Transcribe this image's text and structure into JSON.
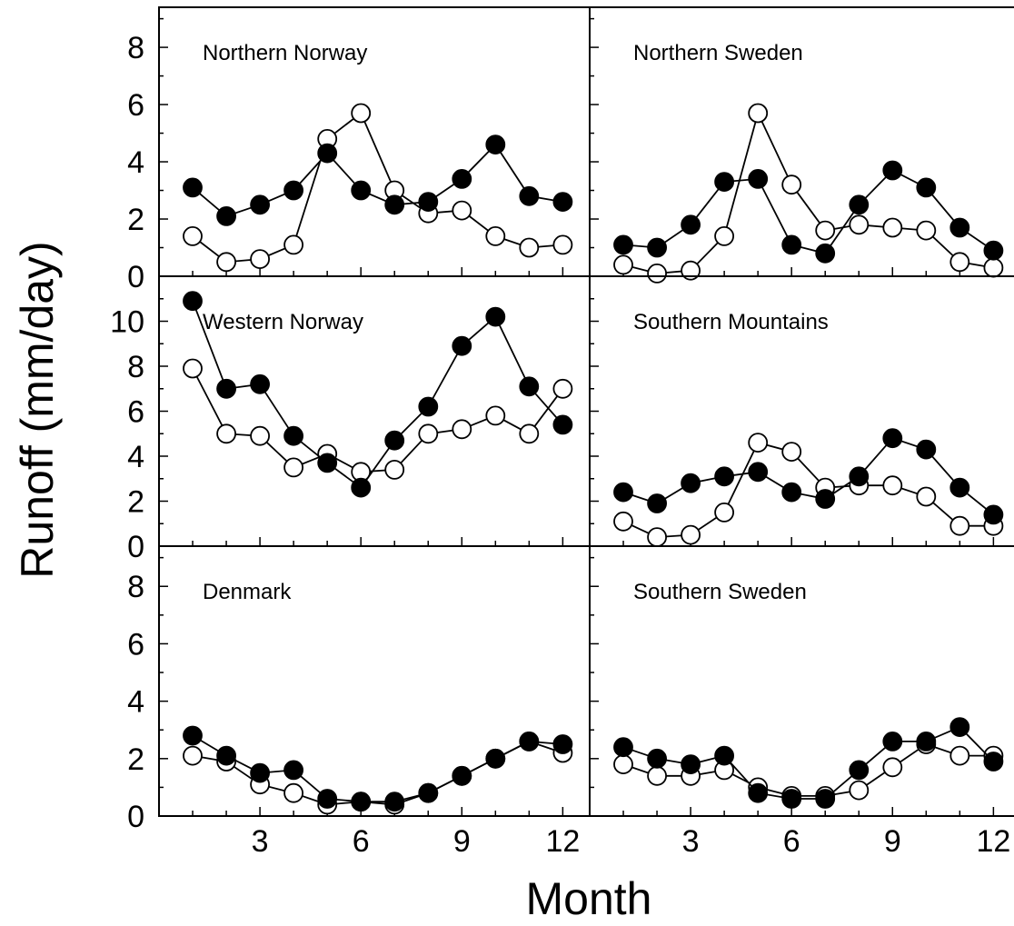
{
  "chart_data": {
    "type": "line",
    "xlabel": "Month",
    "ylabel": "Runoff (mm/day)",
    "x_ticks": [
      3,
      6,
      9,
      12
    ],
    "x_range": [
      0,
      12.8
    ],
    "marker_fill": {
      "filled": "#000000",
      "open": "#ffffff"
    },
    "panels": [
      {
        "title": "Northern Norway",
        "row": 0,
        "col": 0,
        "ylim": [
          0,
          9.4
        ],
        "y_ticks": [
          0,
          2,
          4,
          6,
          8
        ],
        "x": [
          1,
          2,
          3,
          4,
          5,
          6,
          7,
          8,
          9,
          10,
          11,
          12
        ],
        "series": [
          {
            "marker": "filled",
            "values": [
              3.1,
              2.1,
              2.5,
              3.0,
              4.3,
              3.0,
              2.5,
              2.6,
              3.4,
              4.6,
              2.8,
              2.6
            ]
          },
          {
            "marker": "open",
            "values": [
              1.4,
              0.5,
              0.6,
              1.1,
              4.8,
              5.7,
              3.0,
              2.2,
              2.3,
              1.4,
              1.0,
              1.1
            ]
          }
        ]
      },
      {
        "title": "Northern Sweden",
        "row": 0,
        "col": 1,
        "ylim": [
          0,
          9.4
        ],
        "y_ticks": [
          0,
          2,
          4,
          6,
          8
        ],
        "x": [
          1,
          2,
          3,
          4,
          5,
          6,
          7,
          8,
          9,
          10,
          11,
          12
        ],
        "series": [
          {
            "marker": "filled",
            "values": [
              1.1,
              1.0,
              1.8,
              3.3,
              3.4,
              1.1,
              0.8,
              2.5,
              3.7,
              3.1,
              1.7,
              0.9
            ]
          },
          {
            "marker": "open",
            "values": [
              0.4,
              0.1,
              0.2,
              1.4,
              5.7,
              3.2,
              1.6,
              1.8,
              1.7,
              1.6,
              0.5,
              0.3
            ]
          }
        ]
      },
      {
        "title": "Western Norway",
        "row": 1,
        "col": 0,
        "ylim": [
          0,
          12
        ],
        "y_ticks": [
          0,
          2,
          4,
          6,
          8,
          10
        ],
        "x": [
          1,
          2,
          3,
          4,
          5,
          6,
          7,
          8,
          9,
          10,
          11,
          12
        ],
        "series": [
          {
            "marker": "filled",
            "values": [
              10.9,
              7.0,
              7.2,
              4.9,
              3.7,
              2.6,
              4.7,
              6.2,
              8.9,
              10.2,
              7.1,
              5.4
            ]
          },
          {
            "marker": "open",
            "values": [
              7.9,
              5.0,
              4.9,
              3.5,
              4.1,
              3.3,
              3.4,
              5.0,
              5.2,
              5.8,
              5.0,
              7.0
            ]
          }
        ]
      },
      {
        "title": "Southern Mountains",
        "row": 1,
        "col": 1,
        "ylim": [
          0,
          12
        ],
        "y_ticks": [
          0,
          2,
          4,
          6,
          8,
          10
        ],
        "x": [
          1,
          2,
          3,
          4,
          5,
          6,
          7,
          8,
          9,
          10,
          11,
          12
        ],
        "series": [
          {
            "marker": "filled",
            "values": [
              2.4,
              1.9,
              2.8,
              3.1,
              3.3,
              2.4,
              2.1,
              3.1,
              4.8,
              4.3,
              2.6,
              1.4
            ]
          },
          {
            "marker": "open",
            "values": [
              1.1,
              0.4,
              0.5,
              1.5,
              4.6,
              4.2,
              2.6,
              2.7,
              2.7,
              2.2,
              0.9,
              0.9
            ]
          }
        ]
      },
      {
        "title": "Denmark",
        "row": 2,
        "col": 0,
        "ylim": [
          0,
          9.4
        ],
        "y_ticks": [
          0,
          2,
          4,
          6,
          8
        ],
        "x": [
          1,
          2,
          3,
          4,
          5,
          6,
          7,
          8,
          9,
          10,
          11,
          12
        ],
        "series": [
          {
            "marker": "filled",
            "values": [
              2.8,
              2.1,
              1.5,
              1.6,
              0.6,
              0.5,
              0.5,
              0.8,
              1.4,
              2.0,
              2.6,
              2.5
            ]
          },
          {
            "marker": "open",
            "values": [
              2.1,
              1.9,
              1.1,
              0.8,
              0.4,
              0.5,
              0.4,
              0.8,
              1.4,
              2.0,
              2.6,
              2.2
            ]
          }
        ]
      },
      {
        "title": "Southern Sweden",
        "row": 2,
        "col": 1,
        "ylim": [
          0,
          9.4
        ],
        "y_ticks": [
          0,
          2,
          4,
          6,
          8
        ],
        "x": [
          1,
          2,
          3,
          4,
          5,
          6,
          7,
          8,
          9,
          10,
          11,
          12
        ],
        "series": [
          {
            "marker": "filled",
            "values": [
              2.4,
              2.0,
              1.8,
              2.1,
              0.8,
              0.6,
              0.6,
              1.6,
              2.6,
              2.6,
              3.1,
              1.9
            ]
          },
          {
            "marker": "open",
            "values": [
              1.8,
              1.4,
              1.4,
              1.6,
              1.0,
              0.7,
              0.7,
              0.9,
              1.7,
              2.5,
              2.1,
              2.1
            ]
          }
        ]
      }
    ]
  }
}
